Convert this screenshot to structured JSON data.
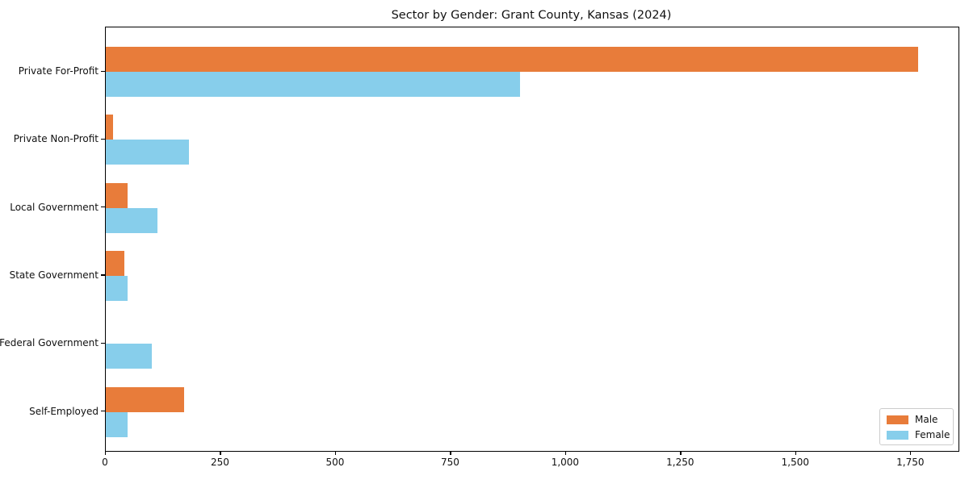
{
  "chart_data": {
    "type": "bar",
    "orientation": "horizontal",
    "title": "Sector by Gender: Grant County, Kansas (2024)",
    "categories": [
      "Private For-Profit",
      "Private Non-Profit",
      "Local Government",
      "State Government",
      "Federal Government",
      "Self-Employed"
    ],
    "series": [
      {
        "name": "Male",
        "color": "#e87c3a",
        "values": [
          1765,
          15,
          48,
          41,
          0,
          170
        ]
      },
      {
        "name": "Female",
        "color": "#87ceeb",
        "values": [
          900,
          180,
          113,
          47,
          100,
          47
        ]
      }
    ],
    "xlabel": "",
    "ylabel": "",
    "xlim": [
      0,
      1853
    ],
    "x_ticks": [
      0,
      250,
      500,
      750,
      1000,
      1250,
      1500,
      1750
    ],
    "x_tick_labels": [
      "0",
      "250",
      "500",
      "750",
      "1,000",
      "1,250",
      "1,500",
      "1,750"
    ],
    "grid": false,
    "legend": {
      "position": "lower right",
      "entries": [
        "Male",
        "Female"
      ]
    }
  }
}
